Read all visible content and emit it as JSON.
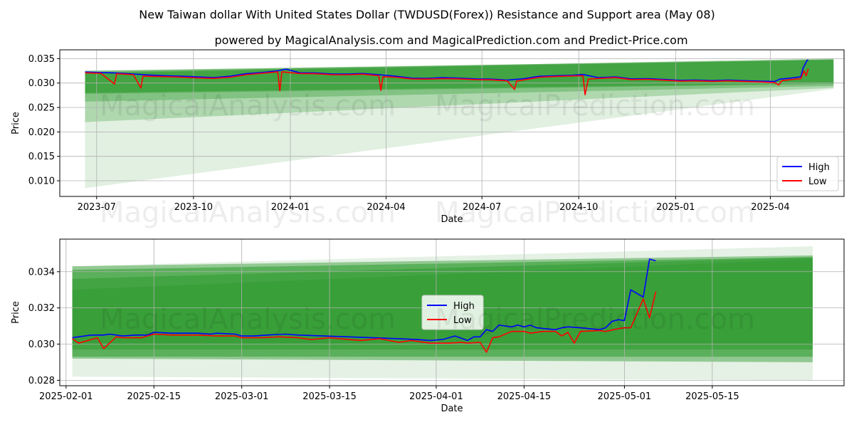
{
  "title": "New Taiwan dollar With United States Dollar (TWDUSD(Forex)) Resistance and Support area (May 08)",
  "subtitle": "powered by MagicalAnalysis.com and MagicalPrediction.com and Predict-Price.com",
  "watermarks": [
    "MagicalAnalysis.com",
    "MagicalPrediction.com"
  ],
  "colors": {
    "high": "#0000ff",
    "low": "#ff0000",
    "band": "#2e9a2e",
    "band_light": "#c9e3c9"
  },
  "chart_data": [
    {
      "type": "line",
      "xlabel": "Date",
      "ylabel": "Price",
      "ylim": [
        0.0068,
        0.0368
      ],
      "grid": true,
      "legend": {
        "entries": [
          "High",
          "Low"
        ],
        "placement": "lower-right"
      },
      "x_ticks": [
        "2023-07",
        "2023-10",
        "2024-01",
        "2024-04",
        "2024-07",
        "2024-10",
        "2025-01",
        "2025-04"
      ],
      "y_ticks": [
        "0.010",
        "0.015",
        "0.020",
        "0.025",
        "0.030",
        "0.035"
      ],
      "series": [
        {
          "name": "High",
          "points": [
            [
              "2023-06-20",
              0.03225
            ],
            [
              "2023-07-05",
              0.03215
            ],
            [
              "2023-07-20",
              0.03205
            ],
            [
              "2023-08-05",
              0.03185
            ],
            [
              "2023-08-20",
              0.03165
            ],
            [
              "2023-09-05",
              0.0315
            ],
            [
              "2023-09-20",
              0.0314
            ],
            [
              "2023-10-05",
              0.03125
            ],
            [
              "2023-10-20",
              0.0311
            ],
            [
              "2023-11-05",
              0.0314
            ],
            [
              "2023-11-20",
              0.0319
            ],
            [
              "2023-12-05",
              0.03215
            ],
            [
              "2023-12-20",
              0.0325
            ],
            [
              "2023-12-28",
              0.03285
            ],
            [
              "2024-01-10",
              0.0321
            ],
            [
              "2024-01-25",
              0.03205
            ],
            [
              "2024-02-10",
              0.03185
            ],
            [
              "2024-02-25",
              0.03185
            ],
            [
              "2024-03-10",
              0.03195
            ],
            [
              "2024-03-25",
              0.0317
            ],
            [
              "2024-04-10",
              0.0314
            ],
            [
              "2024-04-25",
              0.031
            ],
            [
              "2024-05-10",
              0.03095
            ],
            [
              "2024-05-25",
              0.0311
            ],
            [
              "2024-06-10",
              0.031
            ],
            [
              "2024-06-25",
              0.03085
            ],
            [
              "2024-07-10",
              0.0308
            ],
            [
              "2024-07-25",
              0.0306
            ],
            [
              "2024-08-10",
              0.0309
            ],
            [
              "2024-08-25",
              0.0314
            ],
            [
              "2024-09-10",
              0.0315
            ],
            [
              "2024-09-25",
              0.0316
            ],
            [
              "2024-10-05",
              0.03175
            ],
            [
              "2024-10-20",
              0.0311
            ],
            [
              "2024-11-05",
              0.03125
            ],
            [
              "2024-11-20",
              0.03085
            ],
            [
              "2024-12-05",
              0.0309
            ],
            [
              "2024-12-20",
              0.03075
            ],
            [
              "2025-01-05",
              0.03055
            ],
            [
              "2025-01-20",
              0.0306
            ],
            [
              "2025-02-05",
              0.0305
            ],
            [
              "2025-02-20",
              0.0306
            ],
            [
              "2025-03-05",
              0.0305
            ],
            [
              "2025-03-20",
              0.0304
            ],
            [
              "2025-04-05",
              0.0303
            ],
            [
              "2025-04-10",
              0.0308
            ],
            [
              "2025-04-20",
              0.031
            ],
            [
              "2025-04-30",
              0.0313
            ],
            [
              "2025-05-02",
              0.033
            ],
            [
              "2025-05-06",
              0.0347
            ],
            [
              "2025-05-07",
              0.0346
            ]
          ]
        },
        {
          "name": "Low",
          "points": [
            [
              "2023-06-20",
              0.0321
            ],
            [
              "2023-07-05",
              0.032
            ],
            [
              "2023-07-18",
              0.0298
            ],
            [
              "2023-07-20",
              0.0319
            ],
            [
              "2023-08-05",
              0.0317
            ],
            [
              "2023-08-12",
              0.029
            ],
            [
              "2023-08-14",
              0.0314
            ],
            [
              "2023-09-05",
              0.0313
            ],
            [
              "2023-09-20",
              0.0312
            ],
            [
              "2023-10-05",
              0.03105
            ],
            [
              "2023-10-20",
              0.03095
            ],
            [
              "2023-11-05",
              0.0312
            ],
            [
              "2023-11-20",
              0.0317
            ],
            [
              "2023-12-05",
              0.032
            ],
            [
              "2023-12-20",
              0.0323
            ],
            [
              "2023-12-22",
              0.0284
            ],
            [
              "2023-12-24",
              0.0323
            ],
            [
              "2024-01-10",
              0.03195
            ],
            [
              "2024-01-25",
              0.0319
            ],
            [
              "2024-02-10",
              0.0317
            ],
            [
              "2024-02-25",
              0.0317
            ],
            [
              "2024-03-10",
              0.0318
            ],
            [
              "2024-03-25",
              0.0315
            ],
            [
              "2024-03-27",
              0.0285
            ],
            [
              "2024-03-29",
              0.0313
            ],
            [
              "2024-04-10",
              0.0312
            ],
            [
              "2024-04-25",
              0.03085
            ],
            [
              "2024-05-10",
              0.0308
            ],
            [
              "2024-05-25",
              0.0309
            ],
            [
              "2024-06-10",
              0.03085
            ],
            [
              "2024-06-25",
              0.0307
            ],
            [
              "2024-07-10",
              0.03065
            ],
            [
              "2024-07-25",
              0.03045
            ],
            [
              "2024-08-01",
              0.0287
            ],
            [
              "2024-08-03",
              0.0304
            ],
            [
              "2024-08-25",
              0.0312
            ],
            [
              "2024-09-10",
              0.03135
            ],
            [
              "2024-09-25",
              0.03145
            ],
            [
              "2024-10-05",
              0.0315
            ],
            [
              "2024-10-07",
              0.0276
            ],
            [
              "2024-10-10",
              0.0308
            ],
            [
              "2024-10-20",
              0.03095
            ],
            [
              "2024-11-05",
              0.0311
            ],
            [
              "2024-11-20",
              0.0307
            ],
            [
              "2024-12-05",
              0.03075
            ],
            [
              "2024-12-20",
              0.0306
            ],
            [
              "2025-01-05",
              0.0304
            ],
            [
              "2025-01-20",
              0.03045
            ],
            [
              "2025-02-05",
              0.03035
            ],
            [
              "2025-02-20",
              0.03045
            ],
            [
              "2025-03-05",
              0.03035
            ],
            [
              "2025-03-20",
              0.03025
            ],
            [
              "2025-04-05",
              0.0301
            ],
            [
              "2025-04-09",
              0.0296
            ],
            [
              "2025-04-12",
              0.0305
            ],
            [
              "2025-04-20",
              0.0307
            ],
            [
              "2025-04-30",
              0.0309
            ],
            [
              "2025-05-03",
              0.0325
            ],
            [
              "2025-05-05",
              0.0315
            ],
            [
              "2025-05-07",
              0.0329
            ]
          ]
        }
      ]
    },
    {
      "type": "line",
      "xlabel": "Date",
      "ylabel": "Price",
      "ylim": [
        0.0277,
        0.0358
      ],
      "grid": true,
      "legend": {
        "entries": [
          "High",
          "Low"
        ],
        "placement": "center"
      },
      "x_ticks": [
        "2025-02-01",
        "2025-02-15",
        "2025-03-01",
        "2025-03-15",
        "2025-04-01",
        "2025-04-15",
        "2025-05-01",
        "2025-05-15"
      ],
      "y_ticks": [
        "0.028",
        "0.030",
        "0.032",
        "0.034"
      ],
      "series": [
        {
          "name": "High",
          "points": [
            [
              "2025-02-02",
              0.03035
            ],
            [
              "2025-02-03",
              0.0304
            ],
            [
              "2025-02-05",
              0.0305
            ],
            [
              "2025-02-07",
              0.0305
            ],
            [
              "2025-02-08",
              0.03055
            ],
            [
              "2025-02-10",
              0.03045
            ],
            [
              "2025-02-12",
              0.0305
            ],
            [
              "2025-02-14",
              0.0305
            ],
            [
              "2025-02-15",
              0.03065
            ],
            [
              "2025-02-18",
              0.0306
            ],
            [
              "2025-02-22",
              0.0306
            ],
            [
              "2025-02-24",
              0.03055
            ],
            [
              "2025-02-25",
              0.0306
            ],
            [
              "2025-02-28",
              0.03055
            ],
            [
              "2025-03-01",
              0.03045
            ],
            [
              "2025-03-03",
              0.03045
            ],
            [
              "2025-03-05",
              0.0305
            ],
            [
              "2025-03-08",
              0.03055
            ],
            [
              "2025-03-10",
              0.0305
            ],
            [
              "2025-03-14",
              0.03045
            ],
            [
              "2025-03-18",
              0.0304
            ],
            [
              "2025-03-22",
              0.03035
            ],
            [
              "2025-03-26",
              0.0303
            ],
            [
              "2025-03-29",
              0.03025
            ],
            [
              "2025-03-31",
              0.0302
            ],
            [
              "2025-04-02",
              0.03025
            ],
            [
              "2025-04-04",
              0.03045
            ],
            [
              "2025-04-06",
              0.0302
            ],
            [
              "2025-04-07",
              0.0304
            ],
            [
              "2025-04-08",
              0.0304
            ],
            [
              "2025-04-09",
              0.0308
            ],
            [
              "2025-04-10",
              0.0307
            ],
            [
              "2025-04-11",
              0.03105
            ],
            [
              "2025-04-13",
              0.03095
            ],
            [
              "2025-04-14",
              0.03105
            ],
            [
              "2025-04-15",
              0.03095
            ],
            [
              "2025-04-16",
              0.03105
            ],
            [
              "2025-04-17",
              0.0309
            ],
            [
              "2025-04-20",
              0.0308
            ],
            [
              "2025-04-21",
              0.0309
            ],
            [
              "2025-04-22",
              0.03095
            ],
            [
              "2025-04-24",
              0.0309
            ],
            [
              "2025-04-27",
              0.0308
            ],
            [
              "2025-04-28",
              0.0309
            ],
            [
              "2025-04-29",
              0.03125
            ],
            [
              "2025-04-30",
              0.03135
            ],
            [
              "2025-05-01",
              0.0313
            ],
            [
              "2025-05-02",
              0.033
            ],
            [
              "2025-05-04",
              0.0326
            ],
            [
              "2025-05-05",
              0.0347
            ],
            [
              "2025-05-06",
              0.0346
            ]
          ]
        },
        {
          "name": "Low",
          "points": [
            [
              "2025-02-02",
              0.0303
            ],
            [
              "2025-02-03",
              0.03005
            ],
            [
              "2025-02-05",
              0.03025
            ],
            [
              "2025-02-06",
              0.03035
            ],
            [
              "2025-02-07",
              0.02975
            ],
            [
              "2025-02-09",
              0.0304
            ],
            [
              "2025-02-10",
              0.03035
            ],
            [
              "2025-02-13",
              0.03035
            ],
            [
              "2025-02-15",
              0.03055
            ],
            [
              "2025-02-18",
              0.0305
            ],
            [
              "2025-02-22",
              0.0305
            ],
            [
              "2025-02-25",
              0.03045
            ],
            [
              "2025-02-28",
              0.03045
            ],
            [
              "2025-03-01",
              0.03035
            ],
            [
              "2025-03-04",
              0.03035
            ],
            [
              "2025-03-07",
              0.0304
            ],
            [
              "2025-03-10",
              0.03035
            ],
            [
              "2025-03-12",
              0.03025
            ],
            [
              "2025-03-15",
              0.03035
            ],
            [
              "2025-03-18",
              0.03025
            ],
            [
              "2025-03-20",
              0.0302
            ],
            [
              "2025-03-23",
              0.0303
            ],
            [
              "2025-03-26",
              0.0301
            ],
            [
              "2025-03-28",
              0.0302
            ],
            [
              "2025-03-31",
              0.03005
            ],
            [
              "2025-04-03",
              0.03005
            ],
            [
              "2025-04-05",
              0.0301
            ],
            [
              "2025-04-06",
              0.03005
            ],
            [
              "2025-04-08",
              0.0301
            ],
            [
              "2025-04-09",
              0.02955
            ],
            [
              "2025-04-10",
              0.03035
            ],
            [
              "2025-04-11",
              0.0304
            ],
            [
              "2025-04-13",
              0.0307
            ],
            [
              "2025-04-14",
              0.0307
            ],
            [
              "2025-04-15",
              0.0307
            ],
            [
              "2025-04-16",
              0.0306
            ],
            [
              "2025-04-18",
              0.0307
            ],
            [
              "2025-04-20",
              0.0307
            ],
            [
              "2025-04-21",
              0.03045
            ],
            [
              "2025-04-22",
              0.03065
            ],
            [
              "2025-04-23",
              0.03005
            ],
            [
              "2025-04-24",
              0.0307
            ],
            [
              "2025-04-27",
              0.03075
            ],
            [
              "2025-04-28",
              0.0307
            ],
            [
              "2025-04-30",
              0.03085
            ],
            [
              "2025-05-01",
              0.0309
            ],
            [
              "2025-05-02",
              0.0309
            ],
            [
              "2025-05-04",
              0.0325
            ],
            [
              "2025-05-05",
              0.03145
            ],
            [
              "2025-05-06",
              0.0329
            ]
          ]
        }
      ]
    }
  ]
}
